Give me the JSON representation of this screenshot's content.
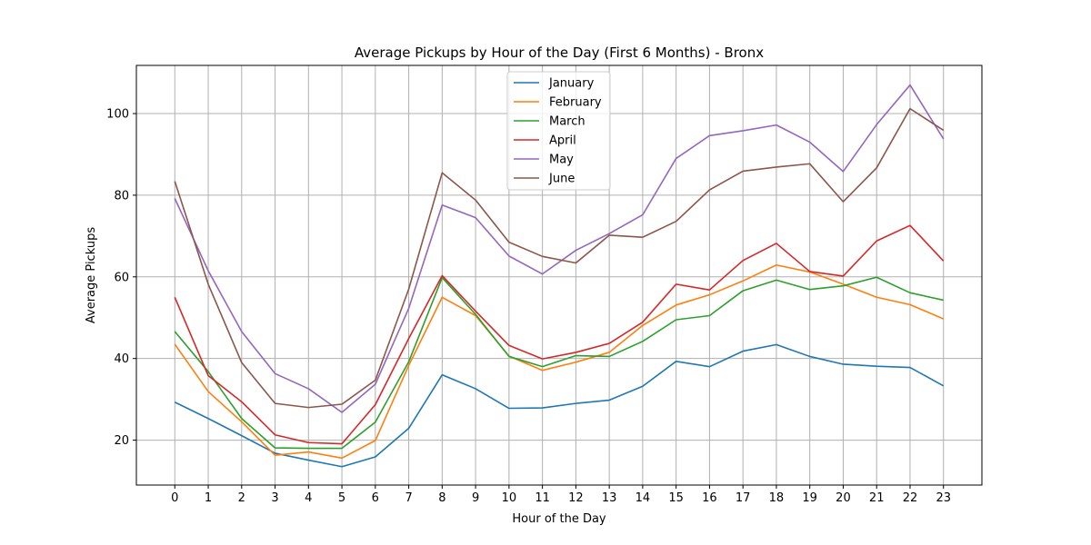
{
  "chart_data": {
    "type": "line",
    "title": "Average Pickups by Hour of the Day (First 6 Months) - Bronx",
    "xlabel": "Hour of the Day",
    "ylabel": "Average Pickups",
    "x": [
      0,
      1,
      2,
      3,
      4,
      5,
      6,
      7,
      8,
      9,
      10,
      11,
      12,
      13,
      14,
      15,
      16,
      17,
      18,
      19,
      20,
      21,
      22,
      23
    ],
    "xlim": [
      -1.15,
      24.15
    ],
    "ylim": [
      9.0,
      111.8
    ],
    "yticks": [
      20,
      40,
      60,
      80,
      100
    ],
    "grid": true,
    "legend_position": "upper center",
    "series": [
      {
        "name": "January",
        "color": "#1f77b4",
        "values": [
          29.3,
          25.3,
          21.1,
          16.8,
          15.1,
          13.5,
          15.9,
          22.9,
          36.0,
          32.6,
          27.8,
          27.9,
          29.0,
          29.8,
          33.2,
          39.3,
          38.0,
          41.8,
          43.4,
          40.5,
          38.6,
          38.1,
          37.8,
          33.3
        ]
      },
      {
        "name": "February",
        "color": "#ff7f0e",
        "values": [
          43.5,
          31.9,
          24.5,
          16.3,
          17.1,
          15.6,
          19.9,
          38.3,
          55.0,
          50.5,
          40.6,
          37.1,
          39.1,
          41.5,
          48.1,
          53.1,
          55.6,
          59.0,
          62.9,
          61.2,
          58.2,
          55.0,
          53.2,
          49.7
        ]
      },
      {
        "name": "March",
        "color": "#2ca02c",
        "values": [
          46.6,
          36.8,
          25.3,
          18.1,
          18.0,
          18.0,
          24.4,
          39.2,
          59.8,
          50.8,
          40.5,
          38.0,
          40.7,
          40.5,
          44.2,
          49.5,
          50.5,
          56.6,
          59.2,
          56.9,
          57.8,
          59.9,
          56.1,
          54.3
        ]
      },
      {
        "name": "April",
        "color": "#d62728",
        "values": [
          55.0,
          35.8,
          29.4,
          21.3,
          19.4,
          19.1,
          28.7,
          44.9,
          60.3,
          51.6,
          43.2,
          39.9,
          41.5,
          43.7,
          48.9,
          58.2,
          56.8,
          64.0,
          68.2,
          61.3,
          60.2,
          68.8,
          72.6,
          63.9
        ]
      },
      {
        "name": "May",
        "color": "#9467bd",
        "values": [
          79.2,
          61.5,
          46.6,
          36.3,
          32.6,
          26.8,
          33.7,
          52.3,
          77.6,
          74.5,
          65.1,
          60.7,
          66.5,
          70.6,
          75.2,
          89.0,
          94.6,
          95.8,
          97.2,
          93.0,
          85.8,
          97.3,
          107.0,
          93.8
        ]
      },
      {
        "name": "June",
        "color": "#8c564b",
        "values": [
          83.4,
          58.2,
          39.0,
          29.0,
          28.0,
          28.8,
          34.7,
          57.0,
          85.5,
          78.8,
          68.5,
          65.0,
          63.4,
          70.2,
          69.7,
          73.6,
          81.3,
          85.9,
          86.9,
          87.7,
          78.4,
          86.7,
          101.2,
          95.9
        ]
      }
    ]
  }
}
